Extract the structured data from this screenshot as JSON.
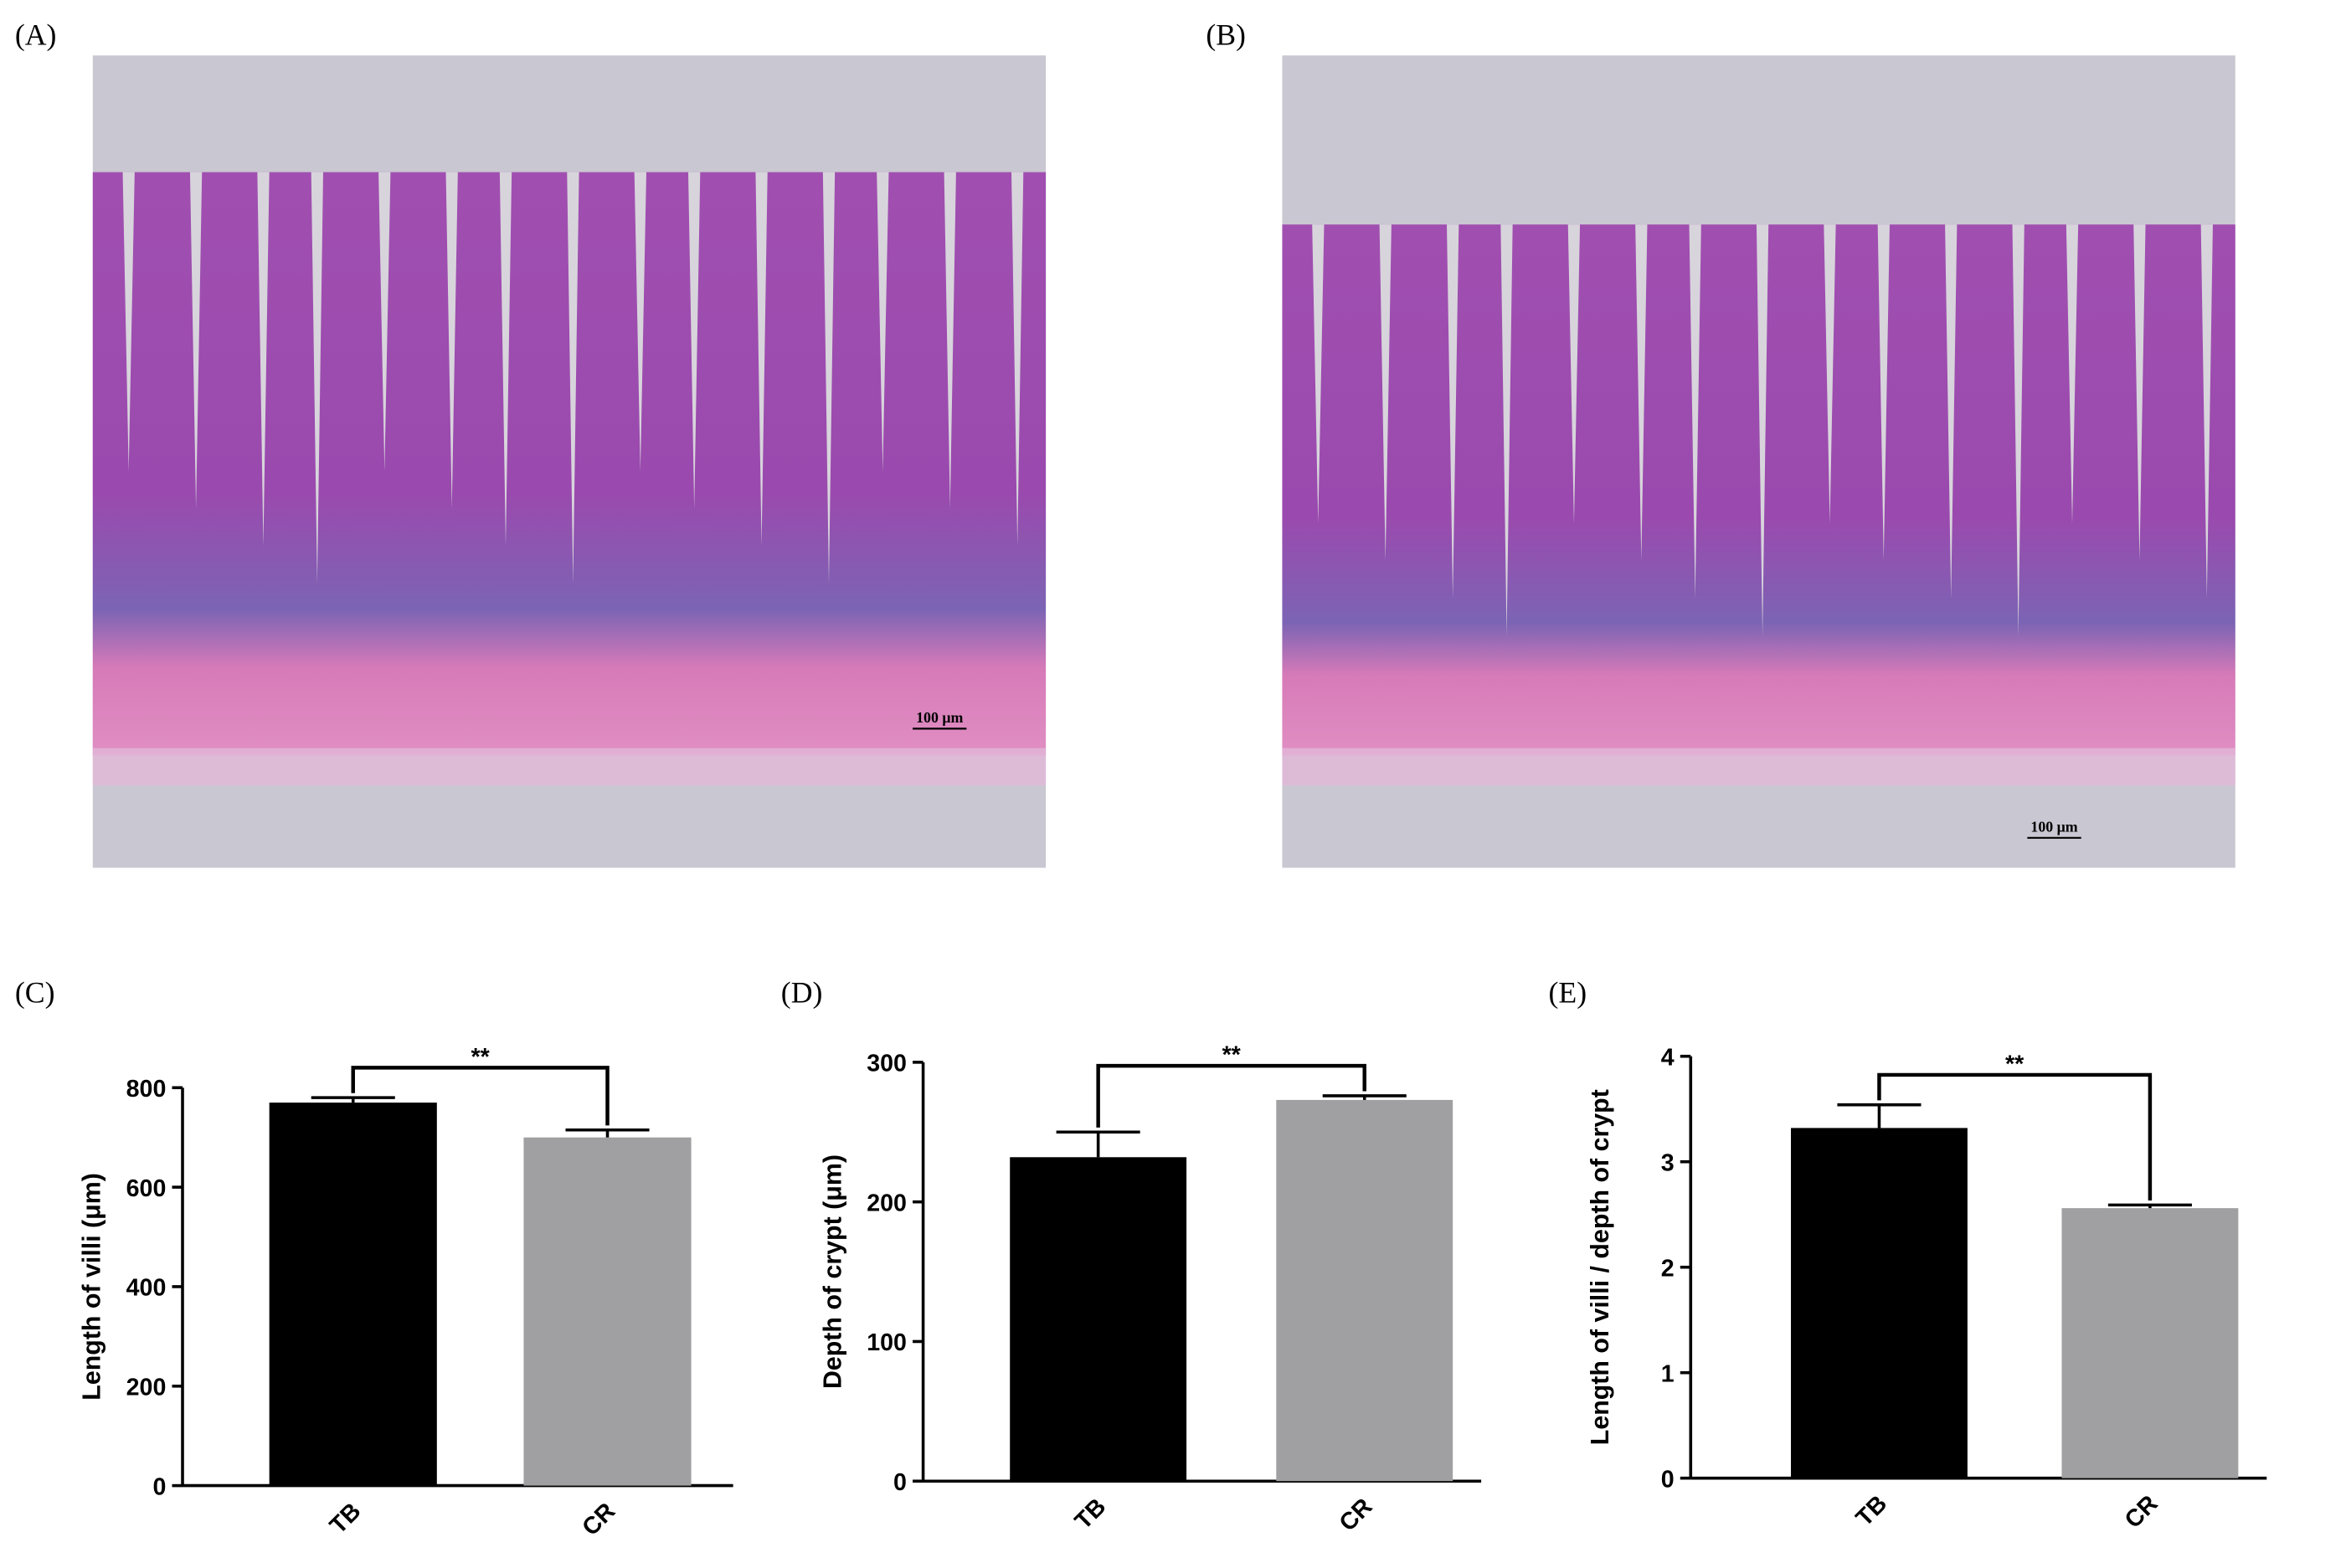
{
  "images": [
    {
      "label": "(A)",
      "scale_bar": "100 μm"
    },
    {
      "label": "(B)",
      "scale_bar": "100 μm"
    }
  ],
  "chart_data": [
    {
      "type": "bar",
      "panel": "(C)",
      "ylabel": "Length of villi (μm)",
      "categories": [
        "TB",
        "CR"
      ],
      "values": [
        770,
        700
      ],
      "errors": [
        10,
        15
      ],
      "colors": [
        "#000000",
        "#a0a0a2"
      ],
      "ylim": [
        0,
        800
      ],
      "yticks": [
        0,
        200,
        400,
        600,
        800
      ],
      "annotation": "**"
    },
    {
      "type": "bar",
      "panel": "(D)",
      "ylabel": "Depth of crypt (μm)",
      "categories": [
        "TB",
        "CR"
      ],
      "values": [
        232,
        273
      ],
      "errors": [
        18,
        3
      ],
      "colors": [
        "#000000",
        "#a0a0a2"
      ],
      "ylim": [
        0,
        300
      ],
      "yticks": [
        0,
        100,
        200,
        300
      ],
      "annotation": "**"
    },
    {
      "type": "bar",
      "panel": "(E)",
      "ylabel": "Length of villi / depth of crypt",
      "categories": [
        "TB",
        "CR"
      ],
      "values": [
        3.32,
        2.56
      ],
      "errors": [
        0.22,
        0.03
      ],
      "colors": [
        "#000000",
        "#a0a0a2"
      ],
      "ylim": [
        0,
        4
      ],
      "yticks": [
        0,
        1,
        2,
        3,
        4
      ],
      "annotation": "**"
    }
  ]
}
